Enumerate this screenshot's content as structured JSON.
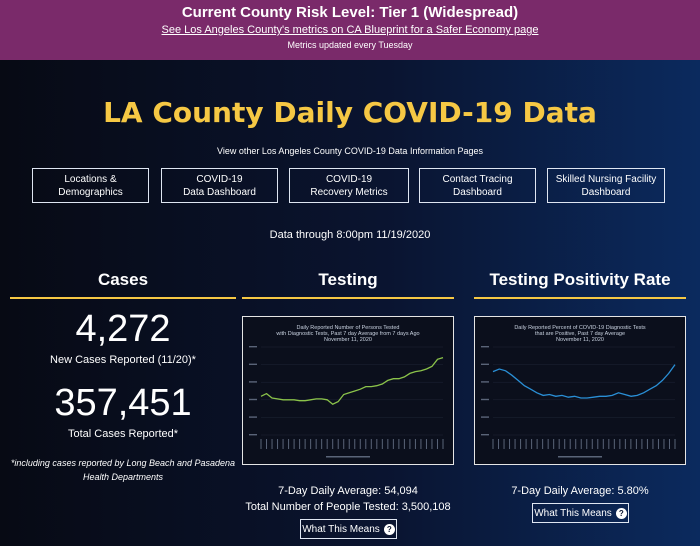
{
  "banner": {
    "title": "Current County Risk Level: Tier 1 (Widespread)",
    "link": "See Los Angeles County's metrics on CA Blueprint for a Safer Economy page",
    "note": "Metrics updated every Tuesday"
  },
  "page_title": "LA County Daily COVID-19 Data",
  "subline": "View other Los Angeles County COVID-19 Data Information Pages",
  "nav": [
    {
      "line1": "Locations &",
      "line2": "Demographics"
    },
    {
      "line1": "COVID-19",
      "line2": "Data Dashboard"
    },
    {
      "line1": "COVID-19",
      "line2": "Recovery Metrics"
    },
    {
      "line1": "Contact Tracing",
      "line2": "Dashboard"
    },
    {
      "line1": "Skilled Nursing Facility",
      "line2": "Dashboard"
    }
  ],
  "data_through": "Data through 8:00pm 11/19/2020",
  "cases": {
    "heading": "Cases",
    "new_value": "4,272",
    "new_label": "New Cases Reported (11/20)*",
    "total_value": "357,451",
    "total_label": "Total Cases Reported*",
    "footnote_1": "*including cases reported by Long Beach and Pasadena",
    "footnote_2": "Health Departments"
  },
  "testing": {
    "heading": "Testing",
    "avg": "7-Day Daily Average: 54,094",
    "total": "Total Number of People Tested: 3,500,108",
    "button": "What This Means"
  },
  "positivity": {
    "heading": "Testing Positivity Rate",
    "avg": "7-Day Daily Average: 5.80%",
    "button": "What This Means"
  },
  "chart_data": [
    {
      "type": "line",
      "title": "Daily Reported Number of Persons Tested with Diagnostic Tests, Past 7 day Average from 7 days Ago",
      "subtitle": "November 11, 2020",
      "color": "#8bc34a",
      "values": [
        0.44,
        0.47,
        0.42,
        0.41,
        0.4,
        0.4,
        0.4,
        0.39,
        0.39,
        0.4,
        0.41,
        0.41,
        0.4,
        0.35,
        0.38,
        0.46,
        0.48,
        0.5,
        0.52,
        0.55,
        0.55,
        0.56,
        0.58,
        0.62,
        0.64,
        0.64,
        0.66,
        0.7,
        0.72,
        0.73,
        0.75,
        0.78,
        0.86,
        0.88
      ]
    },
    {
      "type": "line",
      "title": "Daily Reported Percent of COVID-19 Diagnostic Tests that are Positive, Past 7 day Average",
      "subtitle": "November 11, 2020",
      "color": "#2a8fd6",
      "values": [
        0.72,
        0.75,
        0.73,
        0.68,
        0.62,
        0.56,
        0.52,
        0.48,
        0.45,
        0.46,
        0.44,
        0.45,
        0.43,
        0.44,
        0.42,
        0.42,
        0.43,
        0.44,
        0.44,
        0.45,
        0.48,
        0.46,
        0.44,
        0.45,
        0.48,
        0.52,
        0.56,
        0.62,
        0.7,
        0.8
      ]
    }
  ]
}
